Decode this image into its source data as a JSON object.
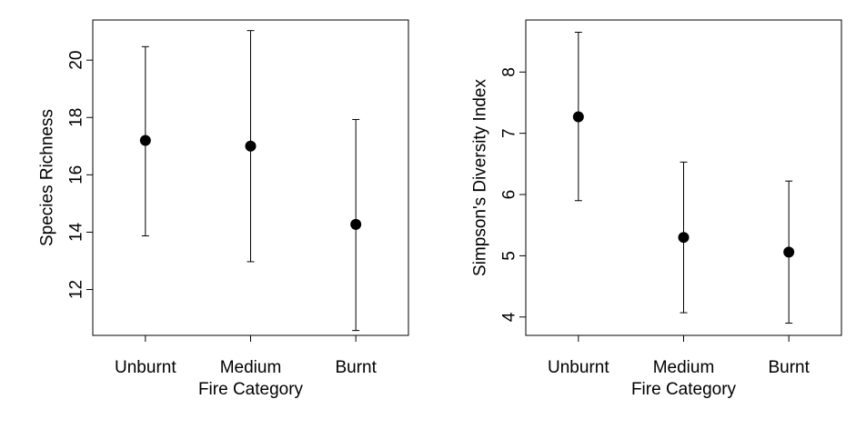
{
  "chart_data": [
    {
      "type": "errorbar",
      "xlabel": "Fire Category",
      "ylabel": "Species Richness",
      "categories": [
        "Unburnt",
        "Medium",
        "Burnt"
      ],
      "yticks": [
        "12",
        "14",
        "16",
        "18",
        "20"
      ],
      "ylim": [
        10.4,
        21.4
      ],
      "series": [
        {
          "mean": [
            17.2,
            17.0,
            14.27
          ],
          "lower": [
            13.87,
            12.97,
            10.57
          ],
          "upper": [
            20.47,
            21.03,
            17.93
          ]
        }
      ],
      "marker_color": "#000000"
    },
    {
      "type": "errorbar",
      "xlabel": "Fire Category",
      "ylabel": "Simpson's Diversity Index",
      "categories": [
        "Unburnt",
        "Medium",
        "Burnt"
      ],
      "yticks": [
        "4",
        "5",
        "6",
        "7",
        "8"
      ],
      "ylim": [
        3.7,
        8.85
      ],
      "series": [
        {
          "mean": [
            7.27,
            5.3,
            5.06
          ],
          "lower": [
            5.9,
            4.07,
            3.9
          ],
          "upper": [
            8.65,
            6.53,
            6.22
          ]
        }
      ],
      "marker_color": "#000000"
    }
  ]
}
